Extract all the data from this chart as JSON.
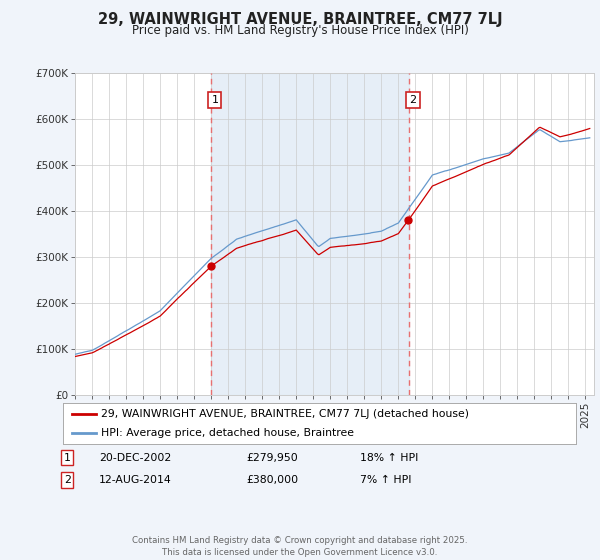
{
  "title": "29, WAINWRIGHT AVENUE, BRAINTREE, CM77 7LJ",
  "subtitle": "Price paid vs. HM Land Registry's House Price Index (HPI)",
  "legend_line1": "29, WAINWRIGHT AVENUE, BRAINTREE, CM77 7LJ (detached house)",
  "legend_line2": "HPI: Average price, detached house, Braintree",
  "annotation1_label": "1",
  "annotation1_date": "20-DEC-2002",
  "annotation1_price": "£279,950",
  "annotation1_hpi": "18% ↑ HPI",
  "annotation1_year": 2002.97,
  "annotation2_label": "2",
  "annotation2_date": "12-AUG-2014",
  "annotation2_price": "£380,000",
  "annotation2_hpi": "7% ↑ HPI",
  "annotation2_year": 2014.62,
  "footer": "Contains HM Land Registry data © Crown copyright and database right 2025.\nThis data is licensed under the Open Government Licence v3.0.",
  "ylim_min": 0,
  "ylim_max": 700000,
  "xlim_min": 1995,
  "xlim_max": 2025.5,
  "background_color": "#f0f4fa",
  "plot_bg_color": "#ffffff",
  "red_color": "#cc0000",
  "blue_color": "#6699cc",
  "vline_color": "#e87070",
  "shade_color": "#dce8f5",
  "title_color": "#222222",
  "grid_color": "#cccccc"
}
